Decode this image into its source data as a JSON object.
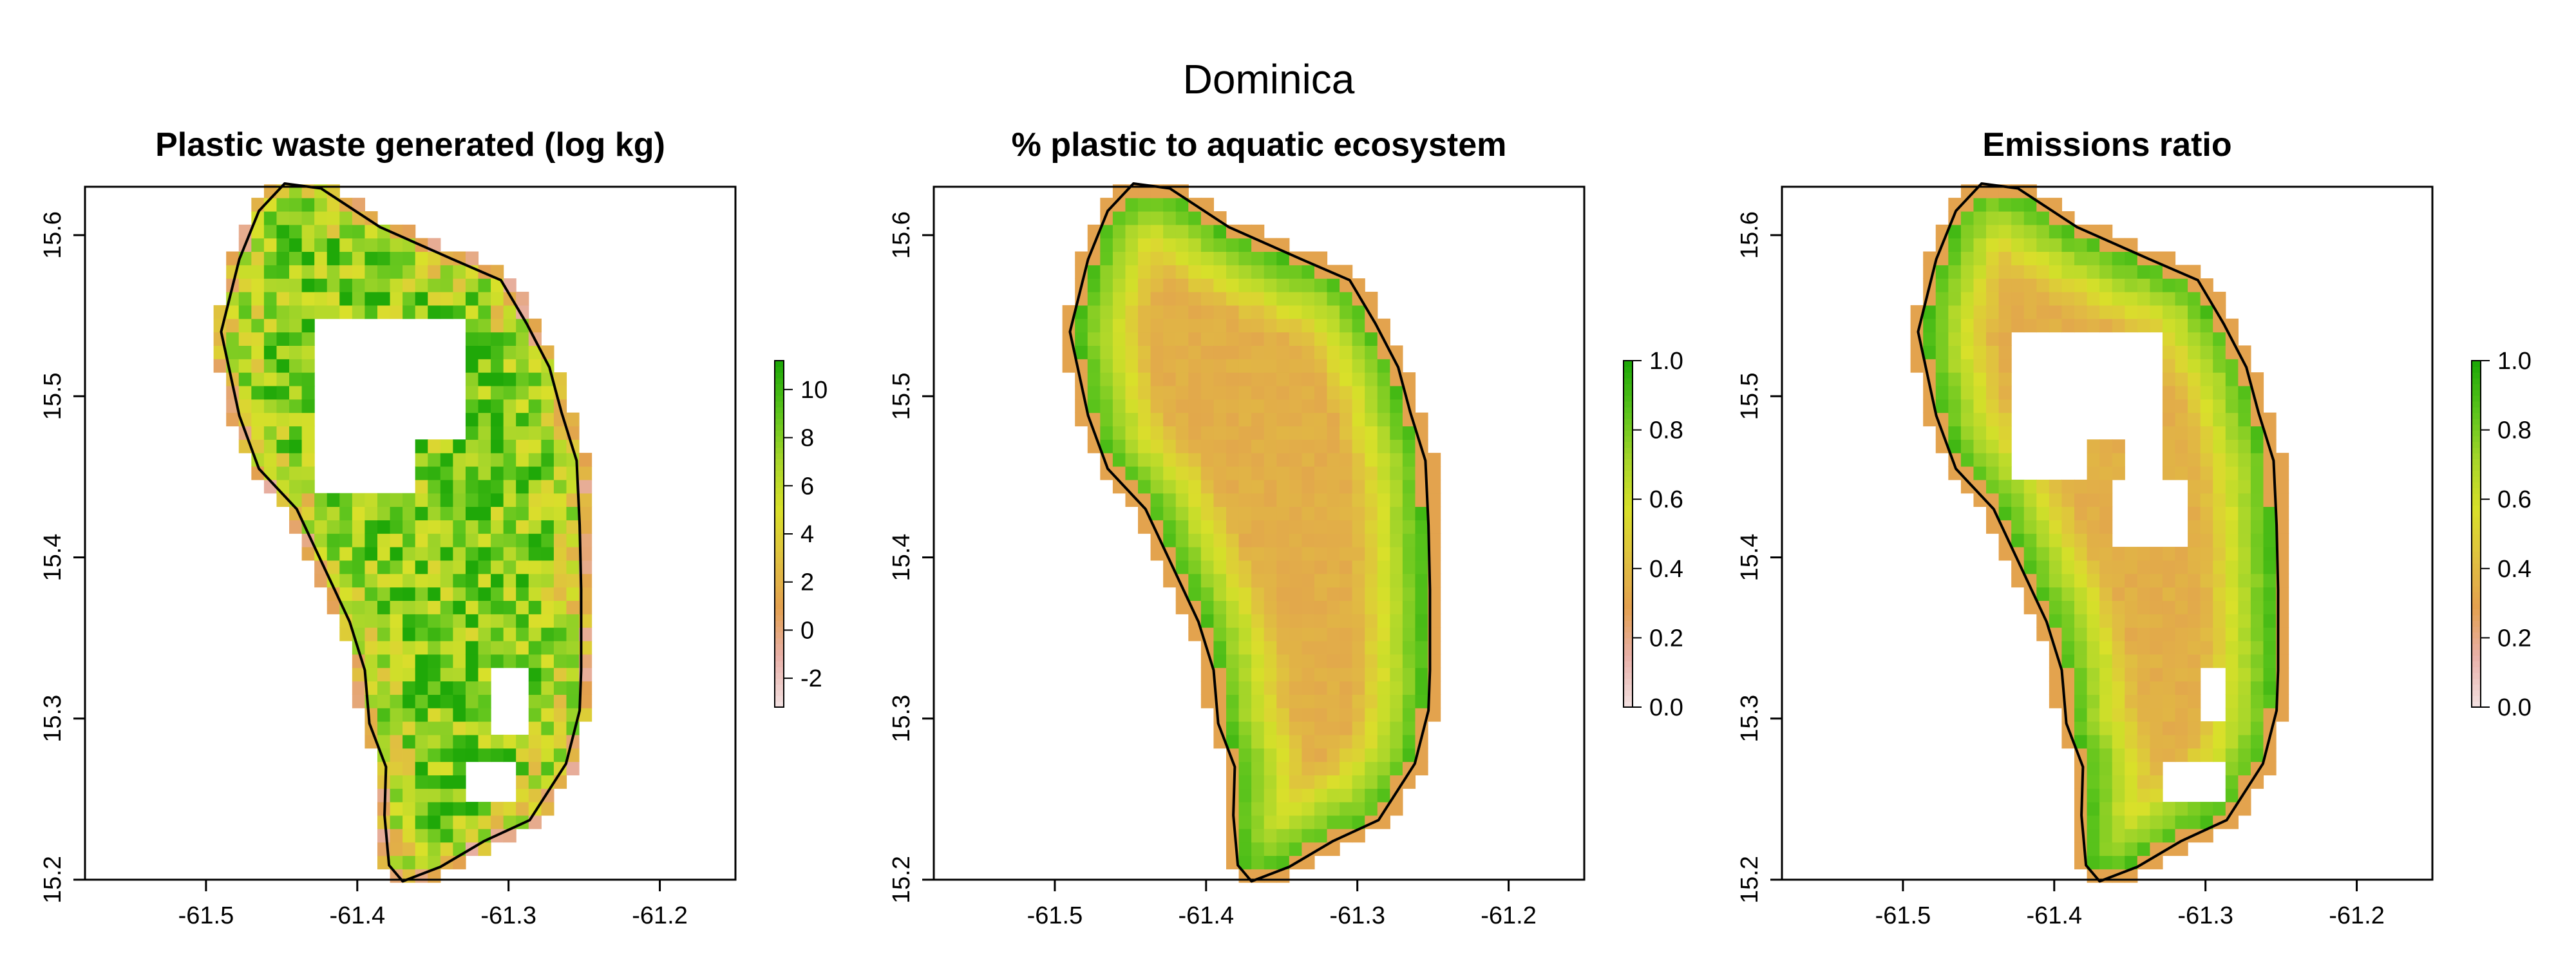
{
  "title": "Dominica",
  "chart_data": [
    {
      "type": "heatmap",
      "title": "Plastic waste generated (log kg)",
      "xlim": [
        -61.58,
        -61.15
      ],
      "ylim": [
        15.2,
        15.63
      ],
      "x_ticks": [
        -61.5,
        -61.4,
        -61.3,
        -61.2
      ],
      "x_tick_labels": [
        "-61.5",
        "-61.4",
        "-61.3",
        "-61.2"
      ],
      "y_ticks": [
        15.2,
        15.3,
        15.4,
        15.5,
        15.6
      ],
      "y_tick_labels": [
        "15.2",
        "15.3",
        "15.4",
        "15.5",
        "15.6"
      ],
      "colorbar": {
        "range": [
          -3.2,
          11.2
        ],
        "ticks": [
          -2,
          0,
          2,
          4,
          6,
          8,
          10
        ],
        "tick_labels": [
          "-2",
          "0",
          "2",
          "4",
          "6",
          "8",
          "10"
        ],
        "colors": [
          "#f2dede",
          "#e8b0a8",
          "#e3a04f",
          "#e0c040",
          "#d9e02a",
          "#a8d62a",
          "#5cc41c",
          "#1fa808"
        ]
      },
      "pattern": "noisy",
      "value_range": [
        -2,
        11
      ]
    },
    {
      "type": "heatmap",
      "title": "% plastic to aquatic ecosystem",
      "xlim": [
        -61.58,
        -61.15
      ],
      "ylim": [
        15.2,
        15.63
      ],
      "x_ticks": [
        -61.5,
        -61.4,
        -61.3,
        -61.2
      ],
      "x_tick_labels": [
        "-61.5",
        "-61.4",
        "-61.3",
        "-61.2"
      ],
      "y_ticks": [
        15.2,
        15.3,
        15.4,
        15.5,
        15.6
      ],
      "y_tick_labels": [
        "15.2",
        "15.3",
        "15.4",
        "15.5",
        "15.6"
      ],
      "colorbar": {
        "range": [
          0,
          1
        ],
        "ticks": [
          0,
          0.2,
          0.4,
          0.6,
          0.8,
          1
        ],
        "tick_labels": [
          "0.0",
          "0.2",
          "0.4",
          "0.6",
          "0.8",
          "1.0"
        ],
        "colors": [
          "#f2dede",
          "#e8b0a8",
          "#e3a04f",
          "#e0c040",
          "#d9e02a",
          "#a8d62a",
          "#5cc41c",
          "#1fa808"
        ]
      },
      "pattern": "smooth",
      "value_range": [
        0,
        1
      ]
    },
    {
      "type": "heatmap",
      "title": "Emissions ratio",
      "xlim": [
        -61.58,
        -61.15
      ],
      "ylim": [
        15.2,
        15.63
      ],
      "x_ticks": [
        -61.5,
        -61.4,
        -61.3,
        -61.2
      ],
      "x_tick_labels": [
        "-61.5",
        "-61.4",
        "-61.3",
        "-61.2"
      ],
      "y_ticks": [
        15.2,
        15.3,
        15.4,
        15.5,
        15.6
      ],
      "y_tick_labels": [
        "15.2",
        "15.3",
        "15.4",
        "15.5",
        "15.6"
      ],
      "colorbar": {
        "range": [
          0,
          1
        ],
        "ticks": [
          0,
          0.2,
          0.4,
          0.6,
          0.8,
          1
        ],
        "tick_labels": [
          "0.0",
          "0.2",
          "0.4",
          "0.6",
          "0.8",
          "1.0"
        ],
        "colors": [
          "#f2dede",
          "#e8b0a8",
          "#e3a04f",
          "#e0c040",
          "#d9e02a",
          "#a8d62a",
          "#5cc41c",
          "#1fa808"
        ]
      },
      "pattern": "smooth-holes",
      "value_range": [
        0,
        1
      ]
    }
  ]
}
